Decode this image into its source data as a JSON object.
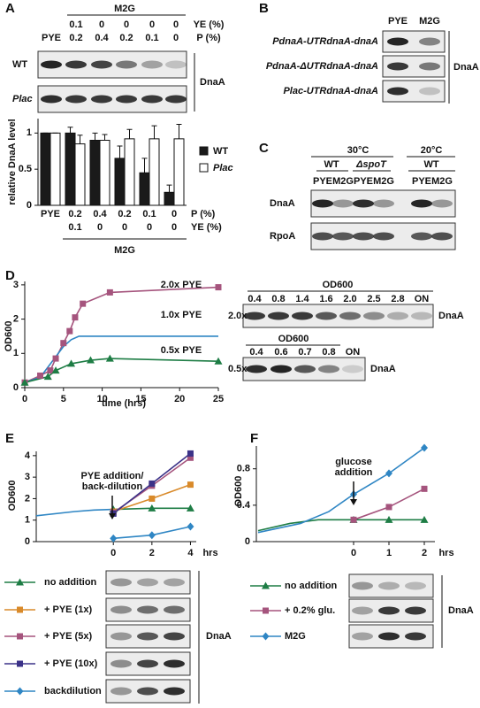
{
  "panel_labels": [
    "A",
    "B",
    "C",
    "D",
    "E",
    "F"
  ],
  "panel_a": {
    "group": "M2G",
    "ye_label": "YE (%)",
    "p_label": "P (%)",
    "ye": [
      null,
      0.1,
      0,
      0,
      0,
      0
    ],
    "p": [
      "PYE",
      0.2,
      0.4,
      0.2,
      0.1,
      0
    ],
    "rows": [
      "WT",
      "Plac"
    ],
    "protein": "DnaA"
  },
  "panel_b": {
    "columns": [
      "PYE",
      "M2G"
    ],
    "rows": [
      "PdnaA-UTRdnaA-dnaA",
      "PdnaA-ΔUTRdnaA-dnaA",
      "Plac-UTRdnaA-dnaA"
    ],
    "protein": "DnaA"
  },
  "panel_c": {
    "temps": [
      "30°C",
      "20°C"
    ],
    "strains": [
      "WT",
      "ΔspoT",
      "WT"
    ],
    "columns": [
      "PYE",
      "M2G",
      "PYE",
      "M2G",
      "PYE",
      "M2G"
    ],
    "rows": [
      "DnaA",
      "RpoA"
    ]
  },
  "panel_d_blots": {
    "header": "OD600",
    "rows": [
      {
        "label": "2.0x",
        "od": [
          0.4,
          0.8,
          1.4,
          1.6,
          "2.0",
          2.5,
          2.8,
          "ON"
        ]
      },
      {
        "label": "0.5x",
        "od": [
          0.4,
          0.6,
          0.7,
          0.8,
          "ON"
        ]
      }
    ],
    "protein": "DnaA"
  },
  "panel_e_blots": {
    "protein": "DnaA"
  },
  "panel_f_blots": {
    "protein": "DnaA"
  },
  "chart_data": [
    {
      "type": "bar",
      "ylabel": "relative DnaA level",
      "categories": [
        "PYE",
        0.2,
        0.4,
        0.2,
        0.1,
        0
      ],
      "xlabel": "P (%)",
      "row2": [
        null,
        0.1,
        0,
        0,
        0,
        0
      ],
      "row2_label": "YE (%)",
      "group": "M2G",
      "ylim": [
        0,
        1.2
      ],
      "yticks": [
        0,
        0.5,
        1
      ],
      "series": [
        {
          "name": "WT",
          "color": "#1a1a1a",
          "values": [
            1,
            1,
            0.9,
            0.65,
            0.45,
            0.18
          ],
          "errors": [
            0,
            0.08,
            0.1,
            0.17,
            0.2,
            0.1
          ]
        },
        {
          "name": "Plac",
          "color": "#ffffff",
          "values": [
            1,
            0.85,
            0.9,
            0.92,
            0.92,
            0.92
          ],
          "errors": [
            0,
            0.12,
            0.08,
            0.13,
            0.18,
            0.2
          ]
        }
      ]
    },
    {
      "type": "line",
      "xlabel": "time (hrs)",
      "ylabel": "OD600",
      "xlim": [
        0,
        25
      ],
      "xticks": [
        0,
        5,
        10,
        15,
        20,
        25
      ],
      "ylim": [
        0,
        3.1
      ],
      "yticks": [
        0,
        1,
        2,
        3
      ],
      "series": [
        {
          "name": "2.0x PYE",
          "color": "#a5547d",
          "marker": "square",
          "x": [
            0,
            2,
            3.3,
            4,
            5,
            5.8,
            6.5,
            7.5,
            11,
            25
          ],
          "values": [
            0.15,
            0.35,
            0.5,
            0.85,
            1.3,
            1.65,
            2.05,
            2.45,
            2.78,
            2.93
          ]
        },
        {
          "name": "1.0x PYE",
          "color": "#2f86c4",
          "x": [
            0,
            2,
            4,
            5,
            6,
            7,
            10,
            25
          ],
          "values": [
            0.15,
            0.3,
            0.9,
            1.2,
            1.4,
            1.5,
            1.5,
            1.5
          ]
        },
        {
          "name": "0.5x PYE",
          "color": "#1e7d45",
          "marker": "triangle",
          "x": [
            0,
            3,
            4,
            6,
            8.5,
            11,
            25
          ],
          "values": [
            0.15,
            0.32,
            0.5,
            0.7,
            0.8,
            0.85,
            0.77
          ]
        }
      ]
    },
    {
      "type": "line",
      "xlabel": "hrs",
      "ylabel": "OD600",
      "annotation": [
        "PYE addition/",
        "back-dilution"
      ],
      "xlim": [
        -4,
        4.3
      ],
      "xticks": [
        0,
        2,
        4
      ],
      "ylim": [
        0,
        4.2
      ],
      "yticks": [
        0,
        1,
        2,
        3,
        4
      ],
      "series": [
        {
          "color": "#2f86c4",
          "x": [
            -4,
            -2,
            -1,
            0
          ],
          "values": [
            1.2,
            1.4,
            1.47,
            1.5
          ]
        },
        {
          "name": "no addition",
          "color": "#1e7d45",
          "marker": "triangle",
          "x": [
            0,
            2,
            4
          ],
          "values": [
            1.5,
            1.55,
            1.55
          ]
        },
        {
          "name": "+ PYE (1x)",
          "color": "#d98a2a",
          "marker": "square",
          "x": [
            0,
            2,
            4
          ],
          "values": [
            1.4,
            2.0,
            2.65
          ]
        },
        {
          "name": "+ PYE (5x)",
          "color": "#a5547d",
          "marker": "square",
          "x": [
            0,
            2,
            4
          ],
          "values": [
            1.35,
            2.6,
            3.9
          ]
        },
        {
          "name": "+ PYE (10x)",
          "color": "#3b3288",
          "marker": "square",
          "x": [
            0,
            2,
            4
          ],
          "values": [
            1.3,
            2.7,
            4.1
          ]
        },
        {
          "name": "backdilution",
          "color": "#2f86c4",
          "marker": "diamond",
          "x": [
            0,
            2,
            4
          ],
          "values": [
            0.15,
            0.3,
            0.7
          ]
        }
      ]
    },
    {
      "type": "line",
      "xlabel": "hrs",
      "ylabel": "OD600",
      "annotation": [
        "glucose",
        "addition"
      ],
      "xlim": [
        -2.75,
        2.3
      ],
      "xticks": [
        0,
        1,
        2
      ],
      "ylim": [
        0,
        1.05
      ],
      "yticks": [
        0,
        0.4,
        0.8
      ],
      "series": [
        {
          "color": "#1e7d45",
          "x": [
            -2.7,
            -1.8,
            -1,
            0
          ],
          "values": [
            0.12,
            0.2,
            0.24,
            0.24
          ]
        },
        {
          "color": "#2f86c4",
          "x": [
            -2.7,
            -1.5,
            -0.7,
            0
          ],
          "values": [
            0.1,
            0.2,
            0.33,
            0.52
          ]
        },
        {
          "name": "no addition",
          "color": "#1e7d45",
          "marker": "triangle",
          "x": [
            0,
            1,
            2
          ],
          "values": [
            0.24,
            0.24,
            0.24
          ]
        },
        {
          "name": "+ 0.2% glu.",
          "color": "#a5547d",
          "marker": "square",
          "x": [
            0,
            1,
            2
          ],
          "values": [
            0.24,
            0.38,
            0.58
          ]
        },
        {
          "name": "M2G",
          "color": "#2f86c4",
          "marker": "diamond",
          "x": [
            0,
            1,
            2
          ],
          "values": [
            0.52,
            0.75,
            1.03
          ]
        }
      ]
    }
  ]
}
